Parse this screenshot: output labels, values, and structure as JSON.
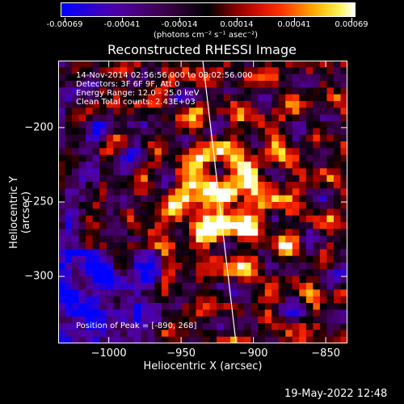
{
  "colorbar": {
    "tick_labels": [
      "-0.00069",
      "-0.00041",
      "-0.00014",
      "0.00014",
      "0.00041",
      "0.00069"
    ],
    "units": "(photons cm⁻² s⁻¹ asec⁻²)"
  },
  "title": "Reconstructed RHESSI Image",
  "info": {
    "time": "14-Nov-2014 02:56:56.000 to 03:02:56.000",
    "detectors": "Detectors: 3F 6F 9F, Att 0",
    "energy": "Energy Range: 12.0 - 25.0 keV",
    "clean": "Clean     Total counts: 2.43E+03",
    "peak": "Position of Peak = [-890, 268]"
  },
  "footer": "19-May-2022 12:48",
  "chart_data": {
    "type": "heatmap",
    "title": "Reconstructed RHESSI Image",
    "xlabel": "Heliocentric X (arcsec)",
    "ylabel": "Heliocentric Y (arcsec)",
    "xlim": [
      -1035,
      -835
    ],
    "ylim": [
      -345,
      -155
    ],
    "x_ticks": [
      -1000,
      -950,
      -900,
      -850
    ],
    "x_tick_labels": [
      "−1000",
      "−950",
      "−900",
      "−850"
    ],
    "y_ticks": [
      -200,
      -250,
      -300
    ],
    "y_tick_labels": [
      "−200",
      "−250",
      "−300"
    ],
    "colormap_range": [
      -0.00069,
      0.00069
    ],
    "limb_line": [
      [
        -935,
        -155
      ],
      [
        -912,
        -345
      ]
    ],
    "peak": [
      -890,
      268
    ]
  }
}
